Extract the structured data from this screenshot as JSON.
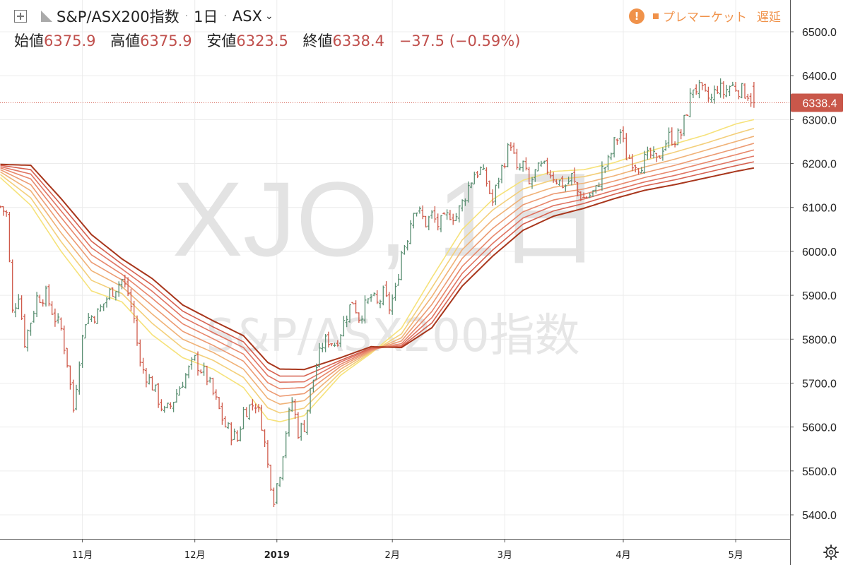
{
  "header": {
    "symbol_name": "S&P/ASX200指数",
    "interval": "1日",
    "exchange": "ASX",
    "open_label": "始値",
    "open_value": "6375.9",
    "high_label": "高値",
    "high_value": "6375.9",
    "low_label": "安値",
    "low_value": "6323.5",
    "close_label": "終値",
    "close_value": "6338.4",
    "change_value": "−37.5 (−0.59%)",
    "status_market": "プレマーケット",
    "status_delay": "遅延",
    "icons": [
      "add-symbol-icon",
      "flag-icon",
      "chevron-down-icon",
      "warning-icon",
      "gear-icon"
    ]
  },
  "watermark": {
    "line1": "XJO, 1日",
    "line2": "S&P/ASX200指数"
  },
  "price_axis": {
    "last_price_label": "6338.4"
  },
  "colors": {
    "up": "#5a8f72",
    "down": "#cf5a4a",
    "last_price": "#c9574a",
    "ma_ribbon": [
      "#f6e27a",
      "#f3cf7a",
      "#f0b277",
      "#ec9a72",
      "#e8876b",
      "#e07462",
      "#d6604f",
      "#a8361c"
    ]
  },
  "chart_data": {
    "type": "candlestick",
    "y_ticks": [
      "6500.0",
      "6400.0",
      "6300.0",
      "6200.0",
      "6100.0",
      "6000.0",
      "5900.0",
      "5800.0",
      "5700.0",
      "5600.0",
      "5500.0",
      "5400.0"
    ],
    "y_tick_values": [
      6500,
      6400,
      6300,
      6200,
      6100,
      6000,
      5900,
      5800,
      5700,
      5600,
      5500,
      5400
    ],
    "ylim": [
      5350,
      6545
    ],
    "x_ticks": [
      {
        "label": "11月",
        "index": 27
      },
      {
        "label": "12月",
        "index": 64
      },
      {
        "label": "2019",
        "index": 91,
        "bold": true
      },
      {
        "label": "2月",
        "index": 129
      },
      {
        "label": "3月",
        "index": 166
      },
      {
        "label": "4月",
        "index": 205
      },
      {
        "label": "5月",
        "index": 242
      }
    ],
    "bar_count": 250,
    "last_index": 248,
    "last_price": 6338.4,
    "anchor_points": [
      [
        0,
        6102
      ],
      [
        2,
        6085
      ],
      [
        4,
        5860
      ],
      [
        6,
        5905
      ],
      [
        8,
        5795
      ],
      [
        10,
        5842
      ],
      [
        12,
        5895
      ],
      [
        15,
        5900
      ],
      [
        18,
        5848
      ],
      [
        20,
        5822
      ],
      [
        22,
        5748
      ],
      [
        24,
        5640
      ],
      [
        26,
        5758
      ],
      [
        28,
        5845
      ],
      [
        32,
        5858
      ],
      [
        36,
        5905
      ],
      [
        40,
        5935
      ],
      [
        42,
        5905
      ],
      [
        44,
        5845
      ],
      [
        46,
        5742
      ],
      [
        50,
        5695
      ],
      [
        54,
        5632
      ],
      [
        56,
        5648
      ],
      [
        60,
        5706
      ],
      [
        64,
        5752
      ],
      [
        68,
        5712
      ],
      [
        70,
        5675
      ],
      [
        74,
        5602
      ],
      [
        78,
        5571
      ],
      [
        80,
        5637
      ],
      [
        84,
        5655
      ],
      [
        86,
        5610
      ],
      [
        88,
        5512
      ],
      [
        90,
        5440
      ],
      [
        92,
        5500
      ],
      [
        94,
        5592
      ],
      [
        96,
        5660
      ],
      [
        98,
        5590
      ],
      [
        100,
        5604
      ],
      [
        102,
        5680
      ],
      [
        104,
        5738
      ],
      [
        106,
        5788
      ],
      [
        108,
        5800
      ],
      [
        110,
        5790
      ],
      [
        112,
        5818
      ],
      [
        114,
        5858
      ],
      [
        116,
        5888
      ],
      [
        118,
        5852
      ],
      [
        120,
        5873
      ],
      [
        122,
        5896
      ],
      [
        124,
        5878
      ],
      [
        126,
        5902
      ],
      [
        128,
        5872
      ],
      [
        130,
        5908
      ],
      [
        132,
        5998
      ],
      [
        134,
        6035
      ],
      [
        136,
        6102
      ],
      [
        138,
        6085
      ],
      [
        140,
        6065
      ],
      [
        142,
        6082
      ],
      [
        144,
        6060
      ],
      [
        146,
        6068
      ],
      [
        148,
        6087
      ],
      [
        150,
        6080
      ],
      [
        152,
        6110
      ],
      [
        154,
        6148
      ],
      [
        156,
        6178
      ],
      [
        158,
        6185
      ],
      [
        160,
        6158
      ],
      [
        162,
        6112
      ],
      [
        164,
        6168
      ],
      [
        166,
        6210
      ],
      [
        168,
        6250
      ],
      [
        170,
        6178
      ],
      [
        172,
        6198
      ],
      [
        174,
        6150
      ],
      [
        176,
        6178
      ],
      [
        178,
        6190
      ],
      [
        180,
        6188
      ],
      [
        182,
        6172
      ],
      [
        184,
        6158
      ],
      [
        186,
        6150
      ],
      [
        188,
        6170
      ],
      [
        190,
        6135
      ],
      [
        192,
        6122
      ],
      [
        194,
        6128
      ],
      [
        196,
        6138
      ],
      [
        198,
        6185
      ],
      [
        200,
        6202
      ],
      [
        202,
        6245
      ],
      [
        204,
        6272
      ],
      [
        206,
        6218
      ],
      [
        208,
        6208
      ],
      [
        210,
        6196
      ],
      [
        212,
        6207
      ],
      [
        214,
        6218
      ],
      [
        216,
        6202
      ],
      [
        218,
        6240
      ],
      [
        220,
        6260
      ],
      [
        222,
        6256
      ],
      [
        224,
        6268
      ],
      [
        226,
        6322
      ],
      [
        228,
        6375
      ],
      [
        230,
        6368
      ],
      [
        232,
        6352
      ],
      [
        234,
        6345
      ],
      [
        236,
        6375
      ],
      [
        238,
        6361
      ],
      [
        240,
        6376
      ],
      [
        242,
        6375
      ],
      [
        244,
        6365
      ],
      [
        246,
        6360
      ],
      [
        248,
        6338
      ]
    ],
    "ma_series": [
      {
        "ref": "ma1",
        "pts": [
          [
            0,
            6168
          ],
          [
            10,
            6105
          ],
          [
            20,
            6000
          ],
          [
            30,
            5910
          ],
          [
            40,
            5885
          ],
          [
            50,
            5810
          ],
          [
            60,
            5758
          ],
          [
            70,
            5732
          ],
          [
            80,
            5690
          ],
          [
            88,
            5618
          ],
          [
            92,
            5612
          ],
          [
            100,
            5626
          ],
          [
            112,
            5718
          ],
          [
            122,
            5768
          ],
          [
            132,
            5825
          ],
          [
            142,
            5940
          ],
          [
            152,
            6050
          ],
          [
            162,
            6118
          ],
          [
            172,
            6162
          ],
          [
            182,
            6182
          ],
          [
            192,
            6186
          ],
          [
            202,
            6202
          ],
          [
            212,
            6225
          ],
          [
            222,
            6245
          ],
          [
            232,
            6265
          ],
          [
            242,
            6290
          ],
          [
            248,
            6300
          ]
        ]
      },
      {
        "ref": "ma2",
        "pts": [
          [
            0,
            6175
          ],
          [
            10,
            6122
          ],
          [
            20,
            6022
          ],
          [
            30,
            5934
          ],
          [
            40,
            5904
          ],
          [
            50,
            5836
          ],
          [
            60,
            5780
          ],
          [
            70,
            5752
          ],
          [
            80,
            5713
          ],
          [
            88,
            5644
          ],
          [
            92,
            5632
          ],
          [
            100,
            5643
          ],
          [
            112,
            5725
          ],
          [
            122,
            5770
          ],
          [
            132,
            5812
          ],
          [
            142,
            5917
          ],
          [
            152,
            6026
          ],
          [
            162,
            6094
          ],
          [
            172,
            6142
          ],
          [
            182,
            6163
          ],
          [
            192,
            6170
          ],
          [
            202,
            6186
          ],
          [
            212,
            6207
          ],
          [
            222,
            6226
          ],
          [
            232,
            6246
          ],
          [
            242,
            6268
          ],
          [
            248,
            6280
          ]
        ]
      },
      {
        "ref": "ma3",
        "pts": [
          [
            0,
            6181
          ],
          [
            10,
            6138
          ],
          [
            20,
            6042
          ],
          [
            30,
            5956
          ],
          [
            40,
            5920
          ],
          [
            50,
            5857
          ],
          [
            60,
            5800
          ],
          [
            70,
            5770
          ],
          [
            80,
            5732
          ],
          [
            88,
            5665
          ],
          [
            92,
            5652
          ],
          [
            100,
            5660
          ],
          [
            112,
            5732
          ],
          [
            122,
            5772
          ],
          [
            132,
            5803
          ],
          [
            142,
            5897
          ],
          [
            152,
            6004
          ],
          [
            162,
            6072
          ],
          [
            172,
            6123
          ],
          [
            182,
            6146
          ],
          [
            192,
            6155
          ],
          [
            202,
            6172
          ],
          [
            212,
            6192
          ],
          [
            222,
            6210
          ],
          [
            232,
            6230
          ],
          [
            242,
            6250
          ],
          [
            248,
            6262
          ]
        ]
      },
      {
        "ref": "ma4",
        "pts": [
          [
            0,
            6186
          ],
          [
            10,
            6152
          ],
          [
            20,
            6060
          ],
          [
            30,
            5975
          ],
          [
            40,
            5935
          ],
          [
            50,
            5876
          ],
          [
            60,
            5818
          ],
          [
            70,
            5786
          ],
          [
            80,
            5750
          ],
          [
            88,
            5684
          ],
          [
            92,
            5670
          ],
          [
            100,
            5676
          ],
          [
            112,
            5738
          ],
          [
            122,
            5774
          ],
          [
            132,
            5796
          ],
          [
            142,
            5879
          ],
          [
            152,
            5984
          ],
          [
            162,
            6052
          ],
          [
            172,
            6106
          ],
          [
            182,
            6131
          ],
          [
            192,
            6142
          ],
          [
            202,
            6160
          ],
          [
            212,
            6179
          ],
          [
            222,
            6196
          ],
          [
            232,
            6215
          ],
          [
            242,
            6234
          ],
          [
            248,
            6246
          ]
        ]
      },
      {
        "ref": "ma5",
        "pts": [
          [
            0,
            6190
          ],
          [
            10,
            6165
          ],
          [
            20,
            6077
          ],
          [
            30,
            5992
          ],
          [
            40,
            5948
          ],
          [
            50,
            5893
          ],
          [
            60,
            5835
          ],
          [
            70,
            5801
          ],
          [
            80,
            5766
          ],
          [
            88,
            5701
          ],
          [
            92,
            5687
          ],
          [
            100,
            5690
          ],
          [
            112,
            5743
          ],
          [
            122,
            5776
          ],
          [
            132,
            5790
          ],
          [
            142,
            5863
          ],
          [
            152,
            5966
          ],
          [
            162,
            6034
          ],
          [
            172,
            6090
          ],
          [
            182,
            6117
          ],
          [
            192,
            6130
          ],
          [
            202,
            6149
          ],
          [
            212,
            6168
          ],
          [
            222,
            6184
          ],
          [
            232,
            6202
          ],
          [
            242,
            6220
          ],
          [
            248,
            6231
          ]
        ]
      },
      {
        "ref": "ma6",
        "pts": [
          [
            0,
            6193
          ],
          [
            10,
            6176
          ],
          [
            20,
            6092
          ],
          [
            30,
            6008
          ],
          [
            40,
            5960
          ],
          [
            50,
            5909
          ],
          [
            60,
            5850
          ],
          [
            70,
            5815
          ],
          [
            80,
            5781
          ],
          [
            88,
            5717
          ],
          [
            92,
            5702
          ],
          [
            100,
            5703
          ],
          [
            112,
            5748
          ],
          [
            122,
            5778
          ],
          [
            132,
            5786
          ],
          [
            142,
            5849
          ],
          [
            152,
            5950
          ],
          [
            162,
            6018
          ],
          [
            172,
            6076
          ],
          [
            182,
            6104
          ],
          [
            192,
            6119
          ],
          [
            202,
            6139
          ],
          [
            212,
            6158
          ],
          [
            222,
            6173
          ],
          [
            232,
            6190
          ],
          [
            242,
            6207
          ],
          [
            248,
            6217
          ]
        ]
      },
      {
        "ref": "ma7",
        "pts": [
          [
            0,
            6196
          ],
          [
            10,
            6186
          ],
          [
            20,
            6106
          ],
          [
            30,
            6023
          ],
          [
            40,
            5971
          ],
          [
            50,
            5923
          ],
          [
            60,
            5864
          ],
          [
            70,
            5828
          ],
          [
            80,
            5794
          ],
          [
            88,
            5731
          ],
          [
            92,
            5716
          ],
          [
            100,
            5716
          ],
          [
            112,
            5752
          ],
          [
            122,
            5780
          ],
          [
            132,
            5783
          ],
          [
            142,
            5837
          ],
          [
            152,
            5935
          ],
          [
            162,
            6003
          ],
          [
            172,
            6062
          ],
          [
            182,
            6092
          ],
          [
            192,
            6109
          ],
          [
            202,
            6130
          ],
          [
            212,
            6149
          ],
          [
            222,
            6163
          ],
          [
            232,
            6179
          ],
          [
            242,
            6195
          ],
          [
            248,
            6204
          ]
        ]
      },
      {
        "ref": "ma8",
        "pts": [
          [
            0,
            6198
          ],
          [
            10,
            6196
          ],
          [
            20,
            6120
          ],
          [
            30,
            6038
          ],
          [
            40,
            5983
          ],
          [
            50,
            5938
          ],
          [
            60,
            5878
          ],
          [
            70,
            5842
          ],
          [
            80,
            5808
          ],
          [
            88,
            5747
          ],
          [
            92,
            5732
          ],
          [
            100,
            5731
          ],
          [
            112,
            5758
          ],
          [
            122,
            5783
          ],
          [
            132,
            5781
          ],
          [
            142,
            5826
          ],
          [
            152,
            5921
          ],
          [
            162,
            5989
          ],
          [
            172,
            6048
          ],
          [
            182,
            6080
          ],
          [
            192,
            6098
          ],
          [
            202,
            6120
          ],
          [
            212,
            6139
          ],
          [
            222,
            6152
          ],
          [
            232,
            6167
          ],
          [
            242,
            6182
          ],
          [
            248,
            6190
          ]
        ]
      }
    ]
  }
}
